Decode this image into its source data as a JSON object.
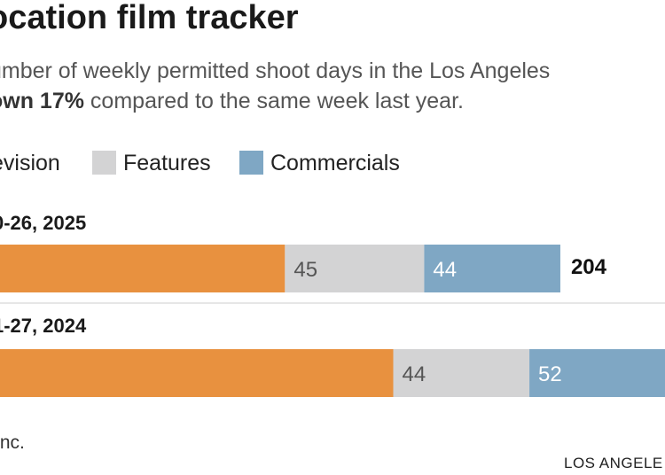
{
  "header": {
    "title": "ocation film tracker",
    "subtitle_line1": "umber of weekly permitted shoot days in the Los Angeles",
    "subtitle_line2_bold": "own 17%",
    "subtitle_line2_rest": " compared to the same week last year."
  },
  "legend": {
    "television": "evision",
    "features": "Features",
    "commercials": "Commercials"
  },
  "footer": {
    "source": "Inc.",
    "credit": "LOS ANGELE"
  },
  "colors": {
    "television": "#E8913F",
    "features": "#D3D3D4",
    "commercials": "#7FA7C4",
    "segment_text_light": "#ffffff",
    "segment_text_dark": "#555555"
  },
  "chart_data": {
    "type": "bar",
    "orientation": "horizontal",
    "stacked": true,
    "categories": [
      "0-26, 2025",
      "1-27, 2024"
    ],
    "series": [
      {
        "name": "evision",
        "values": [
          115,
          150
        ]
      },
      {
        "name": "Features",
        "values": [
          45,
          44
        ]
      },
      {
        "name": "Commercials",
        "values": [
          44,
          52
        ]
      }
    ],
    "totals": [
      "204",
      ""
    ],
    "xlabel": "",
    "ylabel": "",
    "grid": false
  }
}
